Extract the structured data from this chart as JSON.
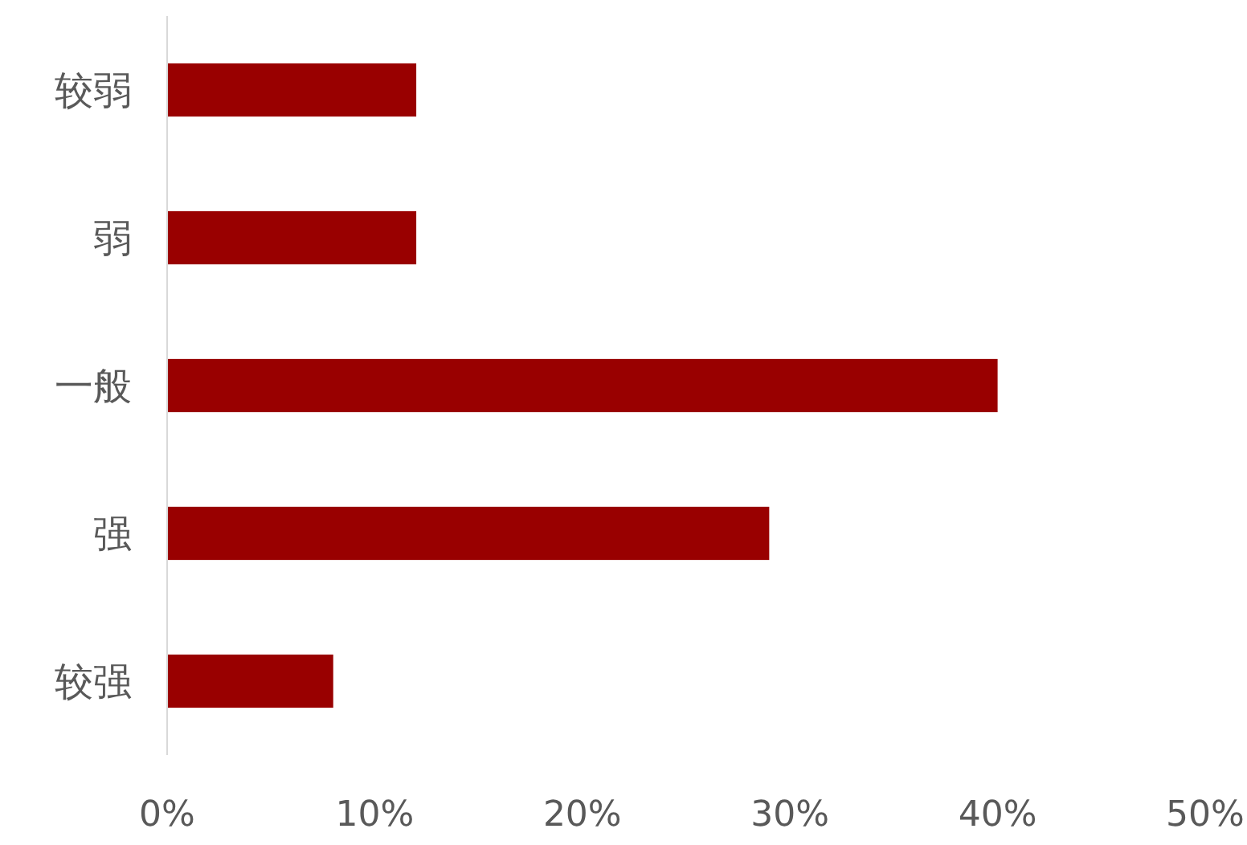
{
  "chart_data": {
    "type": "bar",
    "orientation": "horizontal",
    "categories": [
      "较弱",
      "弱",
      "一般",
      "强",
      "较强"
    ],
    "values": [
      12,
      12,
      40,
      29,
      8
    ],
    "color": "#990000",
    "xlim": [
      0,
      50
    ],
    "xticks": [
      {
        "value": 0,
        "label": "0%"
      },
      {
        "value": 10,
        "label": "10%"
      },
      {
        "value": 20,
        "label": "20%"
      },
      {
        "value": 30,
        "label": "30%"
      },
      {
        "value": 40,
        "label": "40%"
      },
      {
        "value": 50,
        "label": "50%"
      }
    ],
    "grid": false
  }
}
